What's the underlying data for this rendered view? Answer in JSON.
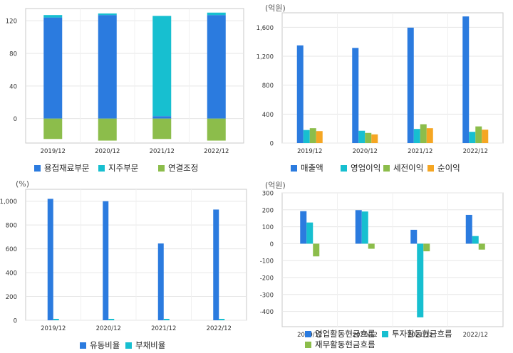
{
  "chart_data": [
    {
      "type": "bar",
      "stacked": true,
      "unit": "",
      "categories": [
        "2019/12",
        "2020/12",
        "2021/12",
        "2022/12"
      ],
      "series": [
        {
          "name": "용접재료부문",
          "color": "#2b7bdf",
          "values": [
            124,
            127,
            3,
            127
          ]
        },
        {
          "name": "지주부문",
          "color": "#17bfd0",
          "values": [
            3,
            2,
            123,
            3
          ]
        },
        {
          "name": "연결조정",
          "color": "#8cbd4b",
          "values": [
            -25,
            -27,
            -25,
            -27
          ]
        }
      ],
      "yticks": [
        120,
        80,
        40,
        0
      ],
      "ylim": [
        -30,
        135
      ],
      "ytick_labels": [
        "120",
        "80",
        "40",
        "0"
      ]
    },
    {
      "type": "bar",
      "stacked": false,
      "unit": "(억원)",
      "categories": [
        "2019/12",
        "2020/12",
        "2021/12",
        "2022/12"
      ],
      "series": [
        {
          "name": "매출액",
          "color": "#2b7bdf",
          "values": [
            1350,
            1315,
            1595,
            1750
          ]
        },
        {
          "name": "영업이익",
          "color": "#17bfd0",
          "values": [
            180,
            170,
            195,
            155
          ]
        },
        {
          "name": "세전이익",
          "color": "#8cbd4b",
          "values": [
            205,
            140,
            260,
            230
          ]
        },
        {
          "name": "순이익",
          "color": "#f5a623",
          "values": [
            165,
            120,
            205,
            185
          ]
        }
      ],
      "yticks": [
        1600,
        1200,
        800,
        400,
        0
      ],
      "ylim": [
        0,
        1800
      ],
      "ytick_labels": [
        "1,600",
        "1,200",
        "800",
        "400",
        "0"
      ]
    },
    {
      "type": "bar",
      "stacked": false,
      "unit": "(%)",
      "categories": [
        "2019/12",
        "2020/12",
        "2021/12",
        "2022/12"
      ],
      "series": [
        {
          "name": "유동비율",
          "color": "#2b7bdf",
          "values": [
            1020,
            1000,
            645,
            930
          ]
        },
        {
          "name": "부채비율",
          "color": "#17bfd0",
          "values": [
            12,
            12,
            12,
            12
          ]
        }
      ],
      "yticks": [
        1000,
        800,
        600,
        400,
        200,
        0
      ],
      "ylim": [
        0,
        1100
      ],
      "ytick_labels": [
        "1,000",
        "800",
        "600",
        "400",
        "200",
        "0"
      ]
    },
    {
      "type": "bar",
      "stacked": false,
      "unit": "(억원)",
      "categories": [
        "2019/12",
        "2020/12",
        "2021/12",
        "2022/12"
      ],
      "series": [
        {
          "name": "영업활동현금흐름",
          "color": "#2b7bdf",
          "values": [
            192,
            198,
            82,
            170
          ]
        },
        {
          "name": "투자활동현금흐름",
          "color": "#17bfd0",
          "values": [
            125,
            190,
            -435,
            45
          ]
        },
        {
          "name": "재무활동현금흐름",
          "color": "#8cbd4b",
          "values": [
            -75,
            -30,
            -45,
            -35
          ]
        }
      ],
      "yticks": [
        300,
        200,
        100,
        0,
        -100,
        -200,
        -300,
        -400
      ],
      "ylim": [
        -490,
        300
      ],
      "ytick_labels": [
        "300",
        "200",
        "100",
        "0",
        "-100",
        "-200",
        "-300",
        "-400"
      ]
    }
  ]
}
